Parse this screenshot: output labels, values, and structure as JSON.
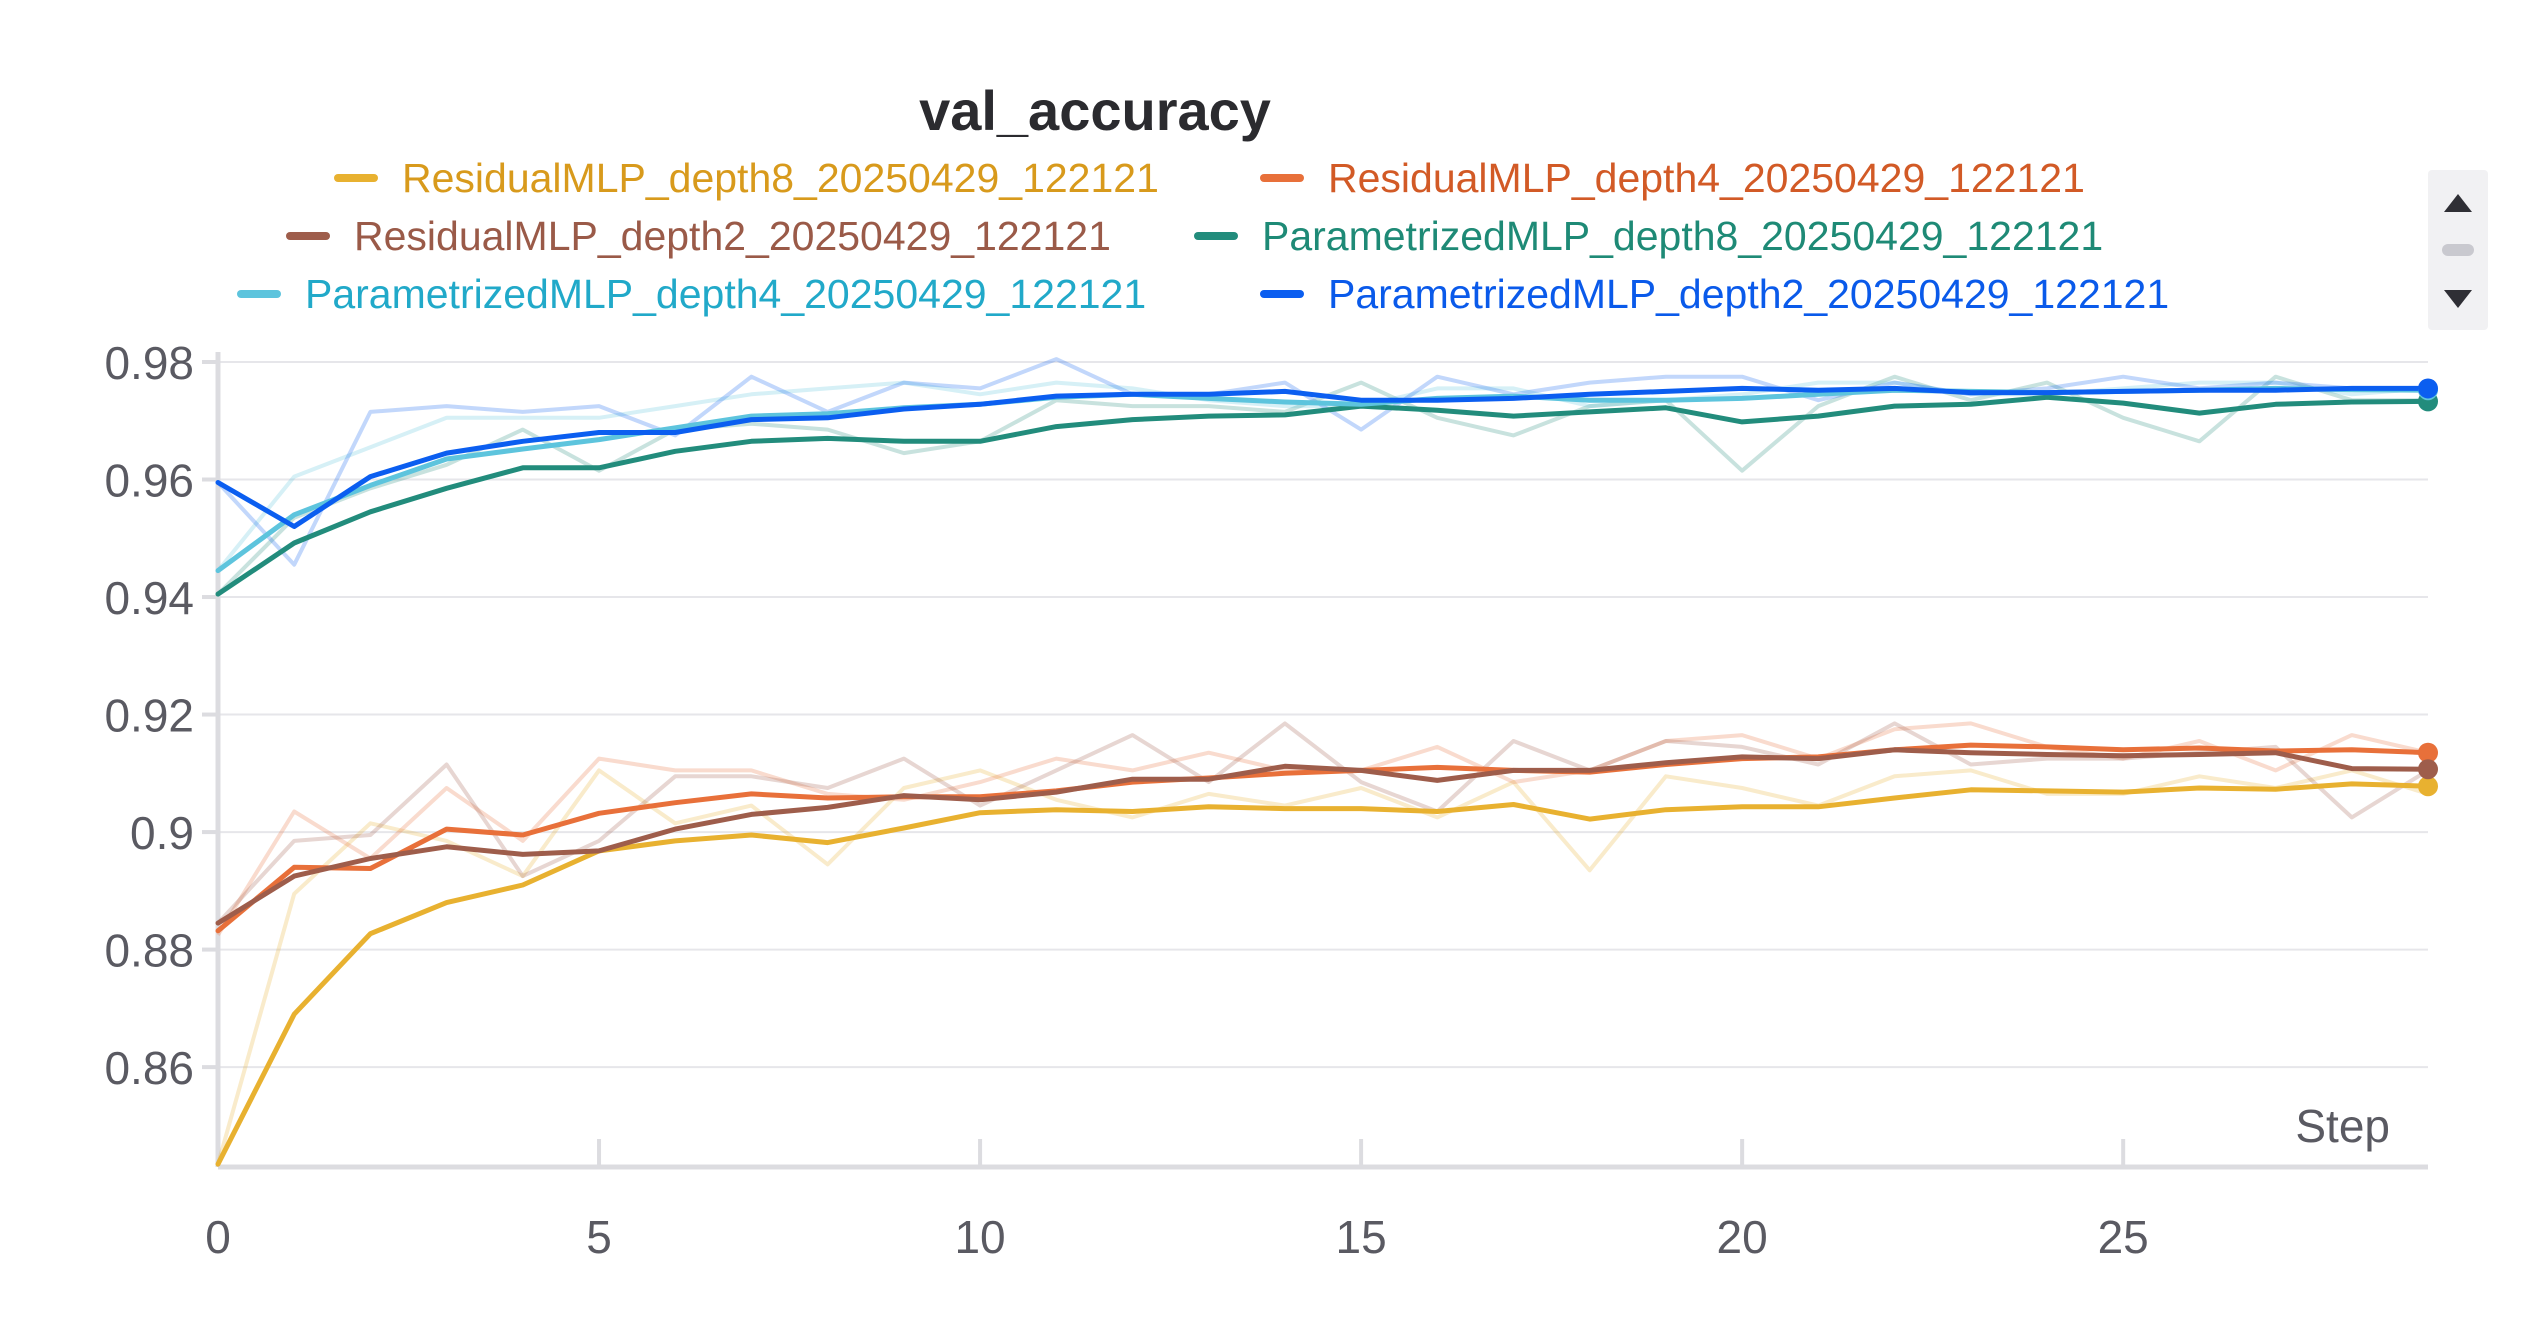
{
  "chart_data": {
    "type": "line",
    "title": "val_accuracy",
    "xlabel": "Step",
    "ylabel": "",
    "xlim": [
      0,
      29
    ],
    "ylim": [
      0.843,
      0.98
    ],
    "xticks": [
      0,
      5,
      10,
      15,
      20,
      25
    ],
    "xtick_labels": [
      "0",
      "5",
      "10",
      "15",
      "20",
      "25"
    ],
    "yticks": [
      0.86,
      0.88,
      0.9,
      0.92,
      0.94,
      0.96,
      0.98
    ],
    "ytick_labels": [
      "0.86",
      "0.88",
      "0.9",
      "0.92",
      "0.94",
      "0.96",
      "0.98"
    ],
    "grid": true,
    "legend_position": "top",
    "x": [
      0,
      1,
      2,
      3,
      4,
      5,
      6,
      7,
      8,
      9,
      10,
      11,
      12,
      13,
      14,
      15,
      16,
      17,
      18,
      19,
      20,
      21,
      22,
      23,
      24,
      25,
      26,
      27,
      28,
      29
    ],
    "series": [
      {
        "name": "ResidualMLP_depth8_20250429_122121",
        "color": "#e8b130",
        "label_color": "#d89a1c",
        "smoothed": [
          0.8435,
          0.869,
          0.8827,
          0.888,
          0.891,
          0.8968,
          0.8985,
          0.8995,
          0.8982,
          0.9007,
          0.9033,
          0.9038,
          0.9035,
          0.9043,
          0.904,
          0.904,
          0.9035,
          0.9047,
          0.9022,
          0.9038,
          0.9043,
          0.9043,
          0.9058,
          0.9072,
          0.907,
          0.9068,
          0.9075,
          0.9073,
          0.9082,
          0.9078
        ],
        "raw": [
          0.8435,
          0.8895,
          0.9015,
          0.8985,
          0.8925,
          0.9105,
          0.9015,
          0.9045,
          0.8945,
          0.9075,
          0.9105,
          0.9055,
          0.9025,
          0.9065,
          0.9045,
          0.9075,
          0.9025,
          0.9085,
          0.8935,
          0.9095,
          0.9075,
          0.9045,
          0.9095,
          0.9105,
          0.9065,
          0.9065,
          0.9095,
          0.9075,
          0.9105,
          0.9065
        ]
      },
      {
        "name": "ResidualMLP_depth4_20250429_122121",
        "color": "#e8703a",
        "label_color": "#d25a26",
        "smoothed": [
          0.8832,
          0.894,
          0.8938,
          0.9005,
          0.8995,
          0.9032,
          0.905,
          0.9065,
          0.9058,
          0.906,
          0.906,
          0.907,
          0.9085,
          0.9092,
          0.91,
          0.9105,
          0.911,
          0.9105,
          0.9102,
          0.9115,
          0.9125,
          0.9128,
          0.914,
          0.9148,
          0.9145,
          0.914,
          0.9143,
          0.9138,
          0.914,
          0.9135
        ],
        "raw": [
          0.8825,
          0.9035,
          0.8955,
          0.9075,
          0.8985,
          0.9125,
          0.9105,
          0.9105,
          0.9065,
          0.9055,
          0.9085,
          0.9125,
          0.9105,
          0.9135,
          0.9105,
          0.9105,
          0.9145,
          0.9085,
          0.9105,
          0.9155,
          0.9165,
          0.9125,
          0.9175,
          0.9185,
          0.9145,
          0.9125,
          0.9155,
          0.9105,
          0.9165,
          0.9135
        ]
      },
      {
        "name": "ResidualMLP_depth2_20250429_122121",
        "color": "#9e5d4b",
        "label_color": "#9a5a48",
        "smoothed": [
          0.8845,
          0.8925,
          0.8955,
          0.8975,
          0.8962,
          0.8968,
          0.9005,
          0.903,
          0.9042,
          0.9062,
          0.9055,
          0.9068,
          0.909,
          0.909,
          0.9112,
          0.9105,
          0.9088,
          0.9105,
          0.9105,
          0.9118,
          0.9128,
          0.9125,
          0.914,
          0.9135,
          0.9132,
          0.913,
          0.9132,
          0.9135,
          0.9108,
          0.9107
        ],
        "raw": [
          0.8845,
          0.8985,
          0.8995,
          0.9115,
          0.8925,
          0.8985,
          0.9095,
          0.9095,
          0.9075,
          0.9125,
          0.9045,
          0.9105,
          0.9165,
          0.9085,
          0.9185,
          0.9085,
          0.9035,
          0.9155,
          0.9105,
          0.9155,
          0.9145,
          0.9115,
          0.9185,
          0.9115,
          0.9125,
          0.9125,
          0.9135,
          0.9145,
          0.9025,
          0.9105
        ]
      },
      {
        "name": "ParametrizedMLP_depth8_20250429_122121",
        "color": "#228c7c",
        "label_color": "#1e8a76",
        "smoothed": [
          0.9405,
          0.9492,
          0.9545,
          0.9585,
          0.962,
          0.962,
          0.9648,
          0.9665,
          0.967,
          0.9665,
          0.9665,
          0.969,
          0.9702,
          0.9708,
          0.971,
          0.9725,
          0.9718,
          0.9708,
          0.9715,
          0.9722,
          0.9698,
          0.9708,
          0.9725,
          0.9728,
          0.974,
          0.973,
          0.9713,
          0.9728,
          0.9732,
          0.9733
        ],
        "raw": [
          0.9405,
          0.9535,
          0.9585,
          0.9625,
          0.9685,
          0.9615,
          0.9685,
          0.9695,
          0.9685,
          0.9645,
          0.9665,
          0.9735,
          0.9725,
          0.9725,
          0.9715,
          0.9765,
          0.9705,
          0.9675,
          0.9725,
          0.9735,
          0.9615,
          0.9725,
          0.9775,
          0.9735,
          0.9765,
          0.9705,
          0.9665,
          0.9775,
          0.9735,
          0.9735
        ]
      },
      {
        "name": "ParametrizedMLP_depth4_20250429_122121",
        "color": "#5dc4dd",
        "label_color": "#21a9c9",
        "smoothed": [
          0.9445,
          0.954,
          0.959,
          0.9635,
          0.9652,
          0.9668,
          0.9688,
          0.9708,
          0.9712,
          0.9722,
          0.9728,
          0.974,
          0.9745,
          0.9738,
          0.9732,
          0.9728,
          0.9738,
          0.9742,
          0.9735,
          0.9735,
          0.9738,
          0.9745,
          0.9752,
          0.975,
          0.9748,
          0.975,
          0.9752,
          0.9755,
          0.9753,
          0.9752
        ],
        "raw": [
          0.9445,
          0.9605,
          0.9655,
          0.9705,
          0.9705,
          0.9705,
          0.9725,
          0.9745,
          0.9755,
          0.9765,
          0.9745,
          0.9765,
          0.9755,
          0.9735,
          0.9725,
          0.9725,
          0.9755,
          0.9755,
          0.9725,
          0.9735,
          0.9745,
          0.9765,
          0.9765,
          0.9745,
          0.9745,
          0.9755,
          0.9765,
          0.9765,
          0.9745,
          0.9755
        ]
      },
      {
        "name": "ParametrizedMLP_depth2_20250429_122121",
        "color": "#0b5ef0",
        "label_color": "#0a5aea",
        "smoothed": [
          0.9595,
          0.952,
          0.9605,
          0.9645,
          0.9665,
          0.968,
          0.968,
          0.9702,
          0.9705,
          0.972,
          0.9728,
          0.9742,
          0.9745,
          0.9745,
          0.975,
          0.9735,
          0.9735,
          0.9738,
          0.9745,
          0.975,
          0.9755,
          0.9752,
          0.9755,
          0.9748,
          0.9748,
          0.975,
          0.9752,
          0.9752,
          0.9755,
          0.9755
        ],
        "raw": [
          0.9595,
          0.9455,
          0.9715,
          0.9725,
          0.9715,
          0.9725,
          0.9675,
          0.9775,
          0.9715,
          0.9765,
          0.9755,
          0.9805,
          0.9745,
          0.9745,
          0.9765,
          0.9685,
          0.9775,
          0.9745,
          0.9765,
          0.9775,
          0.9775,
          0.9735,
          0.9765,
          0.9745,
          0.9755,
          0.9775,
          0.9755,
          0.9765,
          0.9755,
          0.9755
        ]
      }
    ]
  }
}
